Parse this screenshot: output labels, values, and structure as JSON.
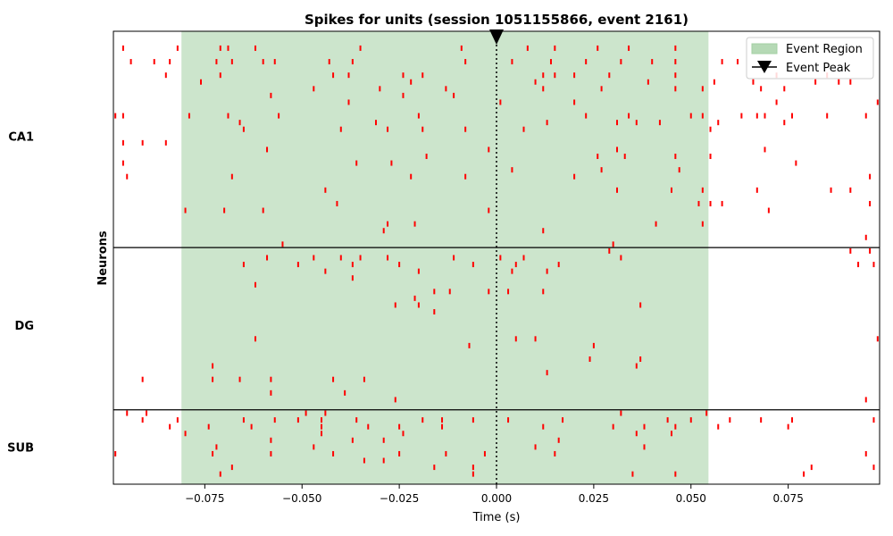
{
  "chart_data": {
    "type": "scatter",
    "title": "Spikes for units (session 1051155866, event 2161)",
    "xlabel": "Time (s)",
    "ylabel": "Neurons",
    "xlim": [
      -0.0985,
      0.0985
    ],
    "x_ticks": [
      -0.075,
      -0.05,
      -0.025,
      0.0,
      0.025,
      0.05,
      0.075
    ],
    "x_tick_labels": [
      "−0.075",
      "−0.050",
      "−0.025",
      "0.000",
      "0.025",
      "0.050",
      "0.075"
    ],
    "event_region": [
      -0.081,
      0.0545
    ],
    "event_peak": 0.0,
    "legend": {
      "placement": "top-right",
      "entries": [
        {
          "label": "Event Region",
          "kind": "patch",
          "color": "#a3d0a3"
        },
        {
          "label": "Event Peak",
          "kind": "triangle-marker",
          "color": "#000000"
        }
      ]
    },
    "regions": [
      {
        "name": "CA1",
        "row_range": [
          0,
          31
        ]
      },
      {
        "name": "DG",
        "row_range": [
          32,
          55
        ]
      },
      {
        "name": "SUB",
        "row_range": [
          56,
          67
        ]
      }
    ],
    "n_rows": 67,
    "spike_color": "#ff0000",
    "region_color": "#a3d0a3",
    "spikes": [
      [
        -0.096,
        2
      ],
      [
        -0.088,
        4
      ],
      [
        -0.082,
        2
      ],
      [
        -0.071,
        2
      ],
      [
        -0.069,
        2
      ],
      [
        -0.062,
        2
      ],
      [
        -0.035,
        2
      ],
      [
        -0.009,
        2
      ],
      [
        0.008,
        2
      ],
      [
        0.015,
        2
      ],
      [
        0.026,
        2
      ],
      [
        0.034,
        2
      ],
      [
        0.046,
        2
      ],
      [
        -0.094,
        4
      ],
      [
        -0.084,
        4
      ],
      [
        -0.072,
        4
      ],
      [
        -0.068,
        4
      ],
      [
        -0.06,
        4
      ],
      [
        -0.057,
        4
      ],
      [
        -0.043,
        4
      ],
      [
        -0.037,
        4
      ],
      [
        -0.008,
        4
      ],
      [
        0.004,
        4
      ],
      [
        0.014,
        4
      ],
      [
        0.023,
        4
      ],
      [
        0.032,
        4
      ],
      [
        0.04,
        4
      ],
      [
        0.046,
        4
      ],
      [
        0.058,
        4
      ],
      [
        0.062,
        4
      ],
      [
        -0.085,
        6
      ],
      [
        -0.071,
        6
      ],
      [
        -0.042,
        6
      ],
      [
        -0.038,
        6
      ],
      [
        -0.024,
        6
      ],
      [
        -0.019,
        6
      ],
      [
        0.012,
        6
      ],
      [
        0.015,
        6
      ],
      [
        0.02,
        6
      ],
      [
        0.029,
        6
      ],
      [
        0.046,
        6
      ],
      [
        0.072,
        6
      ],
      [
        0.085,
        6
      ],
      [
        -0.076,
        7
      ],
      [
        -0.022,
        7
      ],
      [
        0.01,
        7
      ],
      [
        0.039,
        7
      ],
      [
        0.056,
        7
      ],
      [
        0.066,
        7
      ],
      [
        0.082,
        7
      ],
      [
        0.088,
        7
      ],
      [
        0.091,
        7
      ],
      [
        -0.047,
        8
      ],
      [
        -0.03,
        8
      ],
      [
        -0.013,
        8
      ],
      [
        0.012,
        8
      ],
      [
        0.027,
        8
      ],
      [
        0.046,
        8
      ],
      [
        0.053,
        8
      ],
      [
        0.068,
        8
      ],
      [
        0.074,
        8
      ],
      [
        -0.058,
        9
      ],
      [
        -0.024,
        9
      ],
      [
        -0.011,
        9
      ],
      [
        -0.038,
        10
      ],
      [
        0.001,
        10
      ],
      [
        0.02,
        10
      ],
      [
        0.072,
        10
      ],
      [
        0.098,
        10
      ],
      [
        -0.098,
        12
      ],
      [
        -0.096,
        12
      ],
      [
        -0.079,
        12
      ],
      [
        -0.069,
        12
      ],
      [
        -0.056,
        12
      ],
      [
        -0.02,
        12
      ],
      [
        0.023,
        12
      ],
      [
        0.034,
        12
      ],
      [
        0.05,
        12
      ],
      [
        0.053,
        12
      ],
      [
        0.063,
        12
      ],
      [
        0.067,
        12
      ],
      [
        0.069,
        12
      ],
      [
        0.076,
        12
      ],
      [
        0.085,
        12
      ],
      [
        0.095,
        12
      ],
      [
        -0.066,
        13
      ],
      [
        -0.031,
        13
      ],
      [
        0.013,
        13
      ],
      [
        0.031,
        13
      ],
      [
        0.036,
        13
      ],
      [
        0.042,
        13
      ],
      [
        0.057,
        13
      ],
      [
        0.074,
        13
      ],
      [
        -0.065,
        14
      ],
      [
        -0.04,
        14
      ],
      [
        -0.028,
        14
      ],
      [
        -0.019,
        14
      ],
      [
        -0.008,
        14
      ],
      [
        0.007,
        14
      ],
      [
        0.055,
        14
      ],
      [
        -0.096,
        16
      ],
      [
        -0.091,
        16
      ],
      [
        -0.085,
        16
      ],
      [
        -0.059,
        17
      ],
      [
        -0.002,
        17
      ],
      [
        0.031,
        17
      ],
      [
        0.069,
        17
      ],
      [
        -0.018,
        18
      ],
      [
        0.026,
        18
      ],
      [
        0.033,
        18
      ],
      [
        0.046,
        18
      ],
      [
        0.055,
        18
      ],
      [
        -0.096,
        19
      ],
      [
        -0.036,
        19
      ],
      [
        -0.027,
        19
      ],
      [
        0.077,
        19
      ],
      [
        0.004,
        20
      ],
      [
        0.047,
        20
      ],
      [
        0.027,
        20
      ],
      [
        -0.095,
        21
      ],
      [
        -0.068,
        21
      ],
      [
        -0.022,
        21
      ],
      [
        -0.008,
        21
      ],
      [
        0.02,
        21
      ],
      [
        0.096,
        21
      ],
      [
        -0.044,
        23
      ],
      [
        0.031,
        23
      ],
      [
        0.045,
        23
      ],
      [
        0.053,
        23
      ],
      [
        0.067,
        23
      ],
      [
        0.086,
        23
      ],
      [
        0.091,
        23
      ],
      [
        -0.041,
        25
      ],
      [
        0.052,
        25
      ],
      [
        0.055,
        25
      ],
      [
        0.058,
        25
      ],
      [
        0.096,
        25
      ],
      [
        -0.08,
        26
      ],
      [
        -0.07,
        26
      ],
      [
        -0.06,
        26
      ],
      [
        -0.002,
        26
      ],
      [
        0.07,
        26
      ],
      [
        -0.028,
        28
      ],
      [
        -0.021,
        28
      ],
      [
        0.041,
        28
      ],
      [
        0.053,
        28
      ],
      [
        -0.029,
        29
      ],
      [
        0.012,
        29
      ],
      [
        0.095,
        30
      ],
      [
        0.03,
        31
      ],
      [
        -0.055,
        31
      ],
      [
        0.029,
        32
      ],
      [
        0.091,
        32
      ],
      [
        0.096,
        32
      ],
      [
        -0.059,
        33
      ],
      [
        -0.047,
        33
      ],
      [
        -0.04,
        33
      ],
      [
        -0.035,
        33
      ],
      [
        -0.028,
        33
      ],
      [
        -0.011,
        33
      ],
      [
        0.001,
        33
      ],
      [
        0.007,
        33
      ],
      [
        0.032,
        33
      ],
      [
        -0.065,
        34
      ],
      [
        -0.051,
        34
      ],
      [
        -0.037,
        34
      ],
      [
        -0.025,
        34
      ],
      [
        -0.006,
        34
      ],
      [
        0.005,
        34
      ],
      [
        0.016,
        34
      ],
      [
        0.093,
        34
      ],
      [
        0.097,
        34
      ],
      [
        -0.044,
        35
      ],
      [
        -0.02,
        35
      ],
      [
        0.004,
        35
      ],
      [
        0.013,
        35
      ],
      [
        -0.037,
        36
      ],
      [
        -0.062,
        37
      ],
      [
        -0.016,
        38
      ],
      [
        -0.012,
        38
      ],
      [
        -0.002,
        38
      ],
      [
        0.003,
        38
      ],
      [
        0.012,
        38
      ],
      [
        -0.021,
        39
      ],
      [
        -0.026,
        40
      ],
      [
        -0.02,
        40
      ],
      [
        0.037,
        40
      ],
      [
        -0.016,
        41
      ],
      [
        -0.062,
        45
      ],
      [
        0.005,
        45
      ],
      [
        0.01,
        45
      ],
      [
        0.098,
        45
      ],
      [
        -0.007,
        46
      ],
      [
        0.025,
        46
      ],
      [
        0.024,
        48
      ],
      [
        0.037,
        48
      ],
      [
        -0.073,
        49
      ],
      [
        0.036,
        49
      ],
      [
        0.013,
        50
      ],
      [
        -0.091,
        51
      ],
      [
        -0.073,
        51
      ],
      [
        -0.066,
        51
      ],
      [
        -0.058,
        51
      ],
      [
        -0.042,
        51
      ],
      [
        -0.034,
        51
      ],
      [
        -0.058,
        53
      ],
      [
        -0.039,
        53
      ],
      [
        -0.026,
        54
      ],
      [
        0.095,
        54
      ],
      [
        -0.095,
        56
      ],
      [
        -0.09,
        56
      ],
      [
        -0.049,
        56
      ],
      [
        -0.044,
        56
      ],
      [
        0.032,
        56
      ],
      [
        0.054,
        56
      ],
      [
        -0.091,
        57
      ],
      [
        -0.082,
        57
      ],
      [
        -0.065,
        57
      ],
      [
        -0.057,
        57
      ],
      [
        -0.051,
        57
      ],
      [
        -0.045,
        57
      ],
      [
        -0.036,
        57
      ],
      [
        -0.019,
        57
      ],
      [
        -0.014,
        57
      ],
      [
        -0.006,
        57
      ],
      [
        0.003,
        57
      ],
      [
        0.017,
        57
      ],
      [
        0.044,
        57
      ],
      [
        0.05,
        57
      ],
      [
        0.06,
        57
      ],
      [
        0.068,
        57
      ],
      [
        0.076,
        57
      ],
      [
        0.097,
        57
      ],
      [
        -0.084,
        58
      ],
      [
        -0.074,
        58
      ],
      [
        -0.063,
        58
      ],
      [
        -0.045,
        58
      ],
      [
        -0.033,
        58
      ],
      [
        -0.025,
        58
      ],
      [
        -0.014,
        58
      ],
      [
        0.012,
        58
      ],
      [
        0.03,
        58
      ],
      [
        0.038,
        58
      ],
      [
        0.046,
        58
      ],
      [
        0.057,
        58
      ],
      [
        0.075,
        58
      ],
      [
        -0.08,
        59
      ],
      [
        -0.045,
        59
      ],
      [
        -0.024,
        59
      ],
      [
        0.036,
        59
      ],
      [
        0.045,
        59
      ],
      [
        -0.058,
        60
      ],
      [
        -0.037,
        60
      ],
      [
        -0.029,
        60
      ],
      [
        0.016,
        60
      ],
      [
        -0.072,
        61
      ],
      [
        -0.047,
        61
      ],
      [
        0.01,
        61
      ],
      [
        0.038,
        61
      ],
      [
        -0.098,
        62
      ],
      [
        -0.073,
        62
      ],
      [
        -0.058,
        62
      ],
      [
        -0.042,
        62
      ],
      [
        -0.025,
        62
      ],
      [
        -0.013,
        62
      ],
      [
        -0.003,
        62
      ],
      [
        0.015,
        62
      ],
      [
        0.095,
        62
      ],
      [
        -0.034,
        63
      ],
      [
        -0.029,
        63
      ],
      [
        -0.068,
        64
      ],
      [
        -0.016,
        64
      ],
      [
        -0.006,
        64
      ],
      [
        0.081,
        64
      ],
      [
        0.097,
        64
      ],
      [
        -0.071,
        65
      ],
      [
        -0.006,
        65
      ],
      [
        0.035,
        65
      ],
      [
        0.046,
        65
      ],
      [
        0.079,
        65
      ]
    ]
  }
}
